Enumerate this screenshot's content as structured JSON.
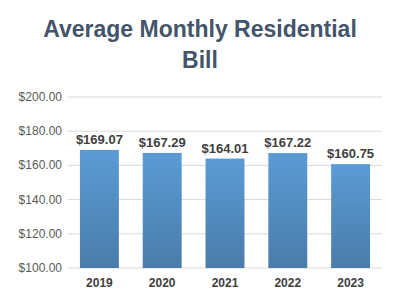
{
  "chart_data": {
    "type": "bar",
    "title": "Average Monthly Residential Bill",
    "categories": [
      "2019",
      "2020",
      "2021",
      "2022",
      "2023"
    ],
    "values": [
      169.07,
      167.29,
      164.01,
      167.22,
      160.75
    ],
    "value_labels": [
      "$169.07",
      "$167.29",
      "$164.01",
      "$167.22",
      "$160.75"
    ],
    "color": "#5b9bd5",
    "ylim": [
      100,
      200
    ],
    "yticks": [
      {
        "value": 100,
        "label": "$100.00"
      },
      {
        "value": 120,
        "label": "$120.00"
      },
      {
        "value": 140,
        "label": "$140.00"
      },
      {
        "value": 160,
        "label": "$160.00"
      },
      {
        "value": 180,
        "label": "$180.00"
      },
      {
        "value": 200,
        "label": "$200.00"
      }
    ],
    "grid": true,
    "data_labels": true
  }
}
